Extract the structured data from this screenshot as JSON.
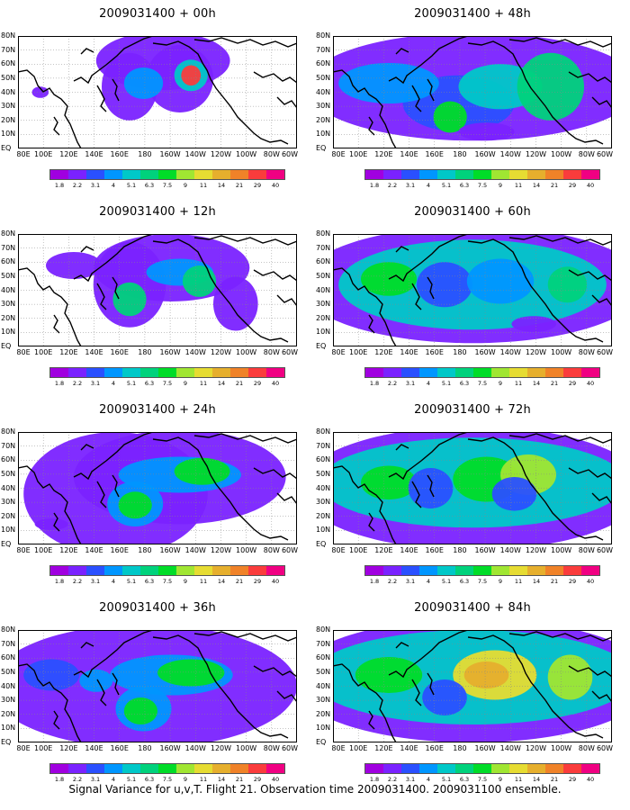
{
  "panels": [
    {
      "title": "2009031400 + 00h",
      "col": 0,
      "row": 0,
      "blobs": [
        [
          0.4,
          0.45,
          0.1,
          0.3,
          1
        ],
        [
          0.52,
          0.22,
          0.24,
          0.26,
          1
        ],
        [
          0.58,
          0.38,
          0.12,
          0.3,
          1
        ],
        [
          0.62,
          0.35,
          0.06,
          0.14,
          4
        ],
        [
          0.62,
          0.35,
          0.035,
          0.09,
          11
        ],
        [
          0.45,
          0.42,
          0.07,
          0.14,
          3
        ],
        [
          0.08,
          0.5,
          0.03,
          0.05,
          1
        ]
      ]
    },
    {
      "title": "2009031400 + 12h",
      "col": 0,
      "row": 1,
      "blobs": [
        [
          0.4,
          0.45,
          0.13,
          0.38,
          1
        ],
        [
          0.55,
          0.3,
          0.28,
          0.3,
          1
        ],
        [
          0.2,
          0.28,
          0.1,
          0.12,
          1
        ],
        [
          0.4,
          0.58,
          0.06,
          0.15,
          5
        ],
        [
          0.58,
          0.34,
          0.12,
          0.12,
          3
        ],
        [
          0.65,
          0.42,
          0.06,
          0.14,
          5
        ],
        [
          0.78,
          0.62,
          0.08,
          0.24,
          1
        ]
      ]
    },
    {
      "title": "2009031400 + 24h",
      "col": 0,
      "row": 2,
      "blobs": [
        [
          0.35,
          0.55,
          0.33,
          0.55,
          1
        ],
        [
          0.58,
          0.4,
          0.38,
          0.42,
          1
        ],
        [
          0.42,
          0.64,
          0.1,
          0.2,
          3
        ],
        [
          0.42,
          0.65,
          0.06,
          0.12,
          6
        ],
        [
          0.58,
          0.38,
          0.22,
          0.16,
          3
        ],
        [
          0.66,
          0.35,
          0.1,
          0.12,
          6
        ],
        [
          0.12,
          0.82,
          0.06,
          0.05,
          1
        ]
      ]
    },
    {
      "title": "2009031400 + 36h",
      "col": 0,
      "row": 3,
      "blobs": [
        [
          0.45,
          0.5,
          0.55,
          0.55,
          1
        ],
        [
          0.45,
          0.7,
          0.1,
          0.2,
          3
        ],
        [
          0.44,
          0.72,
          0.06,
          0.12,
          6
        ],
        [
          0.55,
          0.4,
          0.22,
          0.18,
          3
        ],
        [
          0.62,
          0.38,
          0.12,
          0.12,
          6
        ],
        [
          0.12,
          0.4,
          0.1,
          0.14,
          2
        ],
        [
          0.28,
          0.45,
          0.06,
          0.1,
          3
        ]
      ]
    },
    {
      "title": "2009031400 + 48h",
      "col": 1,
      "row": 0,
      "blobs": [
        [
          0.5,
          0.45,
          0.6,
          0.48,
          1
        ],
        [
          0.45,
          0.6,
          0.2,
          0.25,
          2
        ],
        [
          0.42,
          0.72,
          0.06,
          0.14,
          6
        ],
        [
          0.2,
          0.42,
          0.18,
          0.18,
          3
        ],
        [
          0.6,
          0.45,
          0.15,
          0.2,
          4
        ],
        [
          0.78,
          0.45,
          0.12,
          0.3,
          5
        ],
        [
          0.55,
          0.85,
          0.1,
          0.08,
          1
        ]
      ]
    },
    {
      "title": "2009031400 + 60h",
      "col": 1,
      "row": 1,
      "blobs": [
        [
          0.5,
          0.45,
          0.62,
          0.52,
          1
        ],
        [
          0.5,
          0.45,
          0.48,
          0.4,
          4
        ],
        [
          0.2,
          0.4,
          0.1,
          0.15,
          6
        ],
        [
          0.4,
          0.45,
          0.1,
          0.2,
          2
        ],
        [
          0.6,
          0.42,
          0.12,
          0.2,
          3
        ],
        [
          0.84,
          0.45,
          0.07,
          0.16,
          5
        ],
        [
          0.72,
          0.8,
          0.08,
          0.07,
          1
        ]
      ]
    },
    {
      "title": "2009031400 + 72h",
      "col": 1,
      "row": 2,
      "blobs": [
        [
          0.5,
          0.5,
          0.62,
          0.55,
          1
        ],
        [
          0.5,
          0.45,
          0.55,
          0.4,
          4
        ],
        [
          0.55,
          0.42,
          0.12,
          0.2,
          6
        ],
        [
          0.7,
          0.38,
          0.1,
          0.18,
          7
        ],
        [
          0.2,
          0.45,
          0.1,
          0.15,
          6
        ],
        [
          0.35,
          0.5,
          0.08,
          0.18,
          2
        ],
        [
          0.65,
          0.55,
          0.08,
          0.15,
          2
        ]
      ]
    },
    {
      "title": "2009031400 + 84h",
      "col": 1,
      "row": 3,
      "blobs": [
        [
          0.5,
          0.45,
          0.65,
          0.55,
          1
        ],
        [
          0.5,
          0.42,
          0.58,
          0.42,
          4
        ],
        [
          0.58,
          0.4,
          0.15,
          0.22,
          8
        ],
        [
          0.55,
          0.4,
          0.08,
          0.12,
          9
        ],
        [
          0.2,
          0.4,
          0.12,
          0.16,
          6
        ],
        [
          0.85,
          0.42,
          0.08,
          0.2,
          7
        ],
        [
          0.4,
          0.6,
          0.08,
          0.16,
          2
        ]
      ]
    }
  ],
  "lat_labels": [
    "80N",
    "70N",
    "60N",
    "50N",
    "40N",
    "30N",
    "20N",
    "10N",
    "EQ"
  ],
  "lon_labels": [
    "80E",
    "100E",
    "120E",
    "140E",
    "160E",
    "180",
    "160W",
    "140W",
    "120W",
    "100W",
    "80W",
    "60W"
  ],
  "colorbar": {
    "labels": [
      "1.8",
      "2.2",
      "3.1",
      "4",
      "5.1",
      "6.3",
      "7.5",
      "9",
      "11",
      "14",
      "21",
      "29",
      "40"
    ],
    "colors": [
      "#a000e0",
      "#7a22ff",
      "#2a50ff",
      "#0096ff",
      "#00c8c8",
      "#00d27c",
      "#00dc28",
      "#a0e632",
      "#e6dc32",
      "#e6af2d",
      "#f08228",
      "#fa3c3c",
      "#f00082"
    ]
  },
  "footer": "Signal Variance for u,v,T. Flight 21. Observation time 2009031400. 2009031100 ensemble."
}
